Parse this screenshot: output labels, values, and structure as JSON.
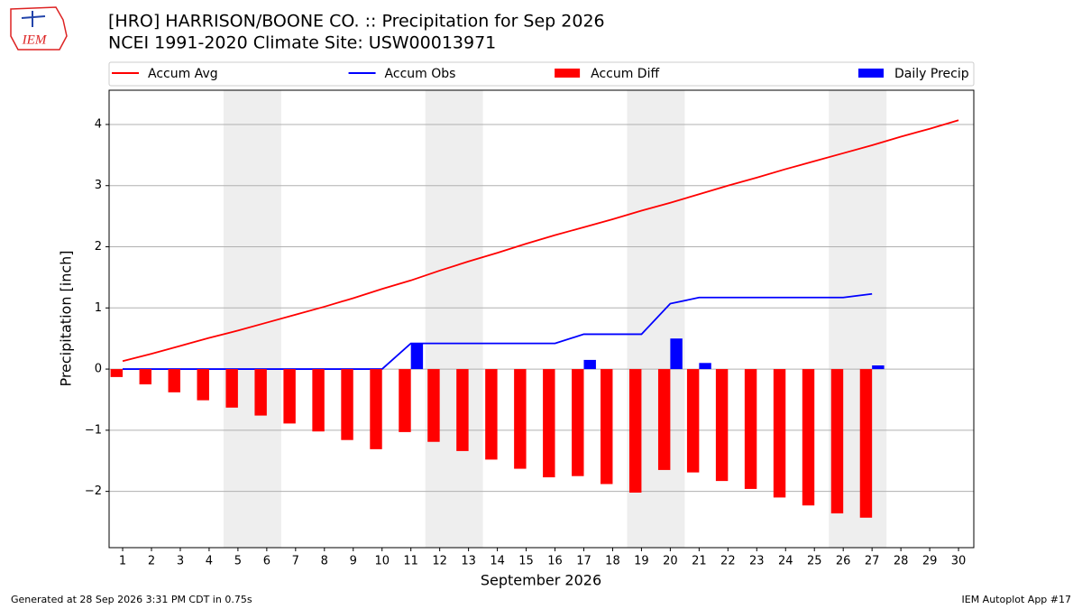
{
  "header": {
    "title": "[HRO] HARRISON/BOONE CO. :: Precipitation for Sep 2026",
    "subtitle": "NCEI 1991-2020 Climate Site: USW00013971",
    "logo": "IEM"
  },
  "footer": {
    "left": "Generated at 28 Sep 2026 3:31 PM CDT in 0.75s",
    "right": "IEM Autoplot App #17"
  },
  "chart_data": {
    "type": "bar",
    "xlabel": "September 2026",
    "ylabel": "Precipitation [inch]",
    "x": [
      1,
      2,
      3,
      4,
      5,
      6,
      7,
      8,
      9,
      10,
      11,
      12,
      13,
      14,
      15,
      16,
      17,
      18,
      19,
      20,
      21,
      22,
      23,
      24,
      25,
      26,
      27,
      28,
      29,
      30
    ],
    "xlim": [
      0.53,
      30.53
    ],
    "ylim": [
      -2.92,
      4.56
    ],
    "xticks": [
      1,
      2,
      3,
      4,
      5,
      6,
      7,
      8,
      9,
      10,
      11,
      12,
      13,
      14,
      15,
      16,
      17,
      18,
      19,
      20,
      21,
      22,
      23,
      24,
      25,
      26,
      27,
      28,
      29,
      30
    ],
    "yticks": [
      {
        "value": -2,
        "label": "−2"
      },
      {
        "value": -1,
        "label": "−1"
      },
      0,
      1,
      2,
      3,
      4
    ],
    "grid": true,
    "legend": "top",
    "shaded": [
      [
        4.5,
        6.5
      ],
      [
        11.5,
        13.5
      ],
      [
        18.5,
        20.5
      ],
      [
        25.5,
        27.5
      ]
    ],
    "series": [
      {
        "name": "Accum Avg",
        "type": "line",
        "color": "#ff0000",
        "values": [
          0.13,
          0.25,
          0.38,
          0.51,
          0.63,
          0.76,
          0.89,
          1.02,
          1.16,
          1.31,
          1.45,
          1.61,
          1.76,
          1.9,
          2.05,
          2.19,
          2.32,
          2.45,
          2.59,
          2.72,
          2.86,
          3.0,
          3.13,
          3.27,
          3.4,
          3.53,
          3.66,
          3.8,
          3.93,
          4.07
        ]
      },
      {
        "name": "Accum Obs",
        "type": "line",
        "color": "#0000ff",
        "values": [
          0,
          0,
          0,
          0,
          0,
          0,
          0,
          0,
          0,
          0,
          0.42,
          0.42,
          0.42,
          0.42,
          0.42,
          0.42,
          0.57,
          0.57,
          0.57,
          1.07,
          1.17,
          1.17,
          1.17,
          1.17,
          1.17,
          1.17,
          1.23,
          null,
          null,
          null
        ]
      },
      {
        "name": "Accum Diff",
        "type": "bar",
        "color": "#ff0000",
        "values": [
          -0.13,
          -0.25,
          -0.38,
          -0.51,
          -0.63,
          -0.76,
          -0.89,
          -1.02,
          -1.16,
          -1.31,
          -1.03,
          -1.19,
          -1.34,
          -1.48,
          -1.63,
          -1.77,
          -1.75,
          -1.88,
          -2.02,
          -1.65,
          -1.69,
          -1.83,
          -1.96,
          -2.1,
          -2.23,
          -2.36,
          -2.43,
          null,
          null,
          null
        ]
      },
      {
        "name": "Daily Precip",
        "type": "bar",
        "color": "#0000ff",
        "values": [
          0,
          0,
          0,
          0,
          0,
          0,
          0,
          0,
          0,
          0,
          0.42,
          0,
          0,
          0,
          0,
          0,
          0.15,
          0,
          0,
          0.5,
          0.1,
          0,
          0,
          0,
          0,
          0,
          0.06,
          null,
          null,
          null
        ]
      }
    ]
  }
}
